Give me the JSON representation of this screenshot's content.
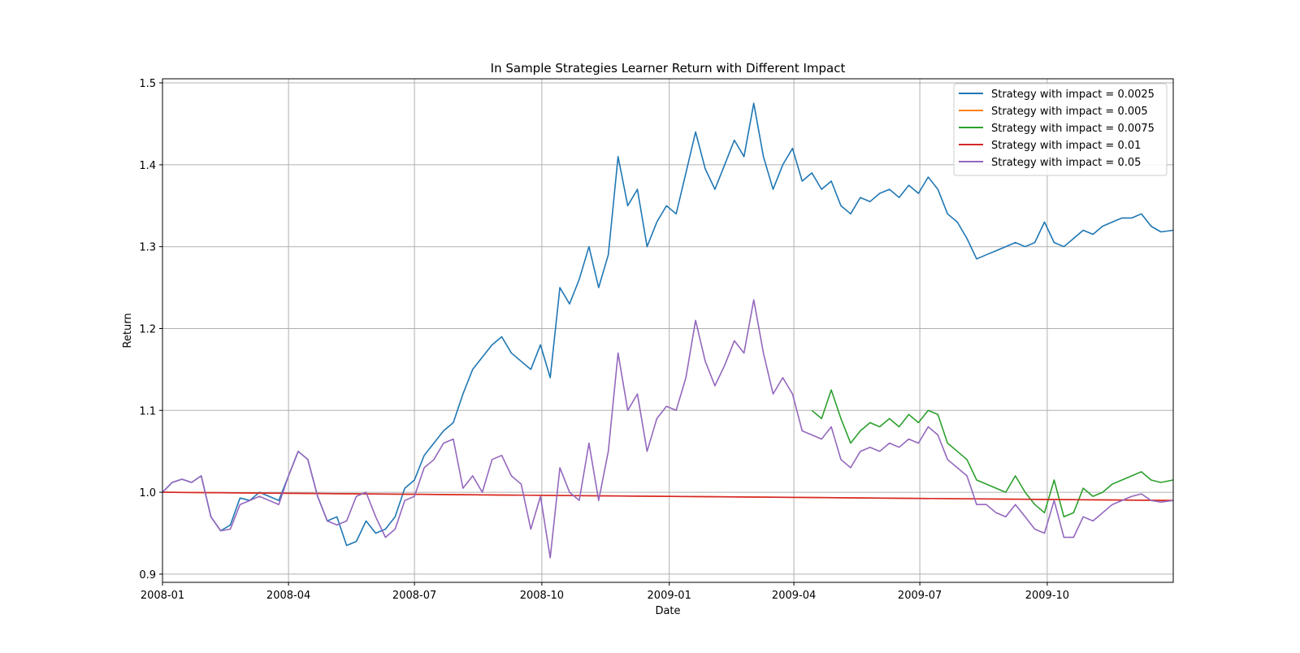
{
  "chart_data": {
    "type": "line",
    "title": "In Sample Strategies Learner Return with Different Impact",
    "xlabel": "Date",
    "ylabel": "Return",
    "xlim": [
      "2008-01-01",
      "2009-12-31"
    ],
    "ylim": [
      0.89,
      1.505
    ],
    "x_ticks": [
      "2008-01",
      "2008-04",
      "2008-07",
      "2008-10",
      "2009-01",
      "2009-04",
      "2009-07",
      "2009-10"
    ],
    "x_tick_dates": [
      "2008-01-01",
      "2008-04-01",
      "2008-07-01",
      "2008-10-01",
      "2009-01-01",
      "2009-04-01",
      "2009-07-01",
      "2009-10-01"
    ],
    "y_ticks": [
      "0.9",
      "1.0",
      "1.1",
      "1.2",
      "1.3",
      "1.4",
      "1.5"
    ],
    "y_tick_values": [
      0.9,
      1.0,
      1.1,
      1.2,
      1.3,
      1.4,
      1.5
    ],
    "grid": true,
    "legend_position": "top-right",
    "series": [
      {
        "name": "Strategy with impact = 0.0025",
        "color": "#1f77b4",
        "points": [
          [
            "2008-01-01",
            1.0
          ],
          [
            "2008-01-08",
            1.012
          ],
          [
            "2008-01-15",
            1.016
          ],
          [
            "2008-01-22",
            1.012
          ],
          [
            "2008-01-29",
            1.02
          ],
          [
            "2008-02-05",
            0.97
          ],
          [
            "2008-02-12",
            0.953
          ],
          [
            "2008-02-19",
            0.96
          ],
          [
            "2008-02-26",
            0.993
          ],
          [
            "2008-03-04",
            0.99
          ],
          [
            "2008-03-11",
            1.0
          ],
          [
            "2008-03-18",
            0.995
          ],
          [
            "2008-03-25",
            0.99
          ],
          [
            "2008-04-01",
            1.02
          ],
          [
            "2008-04-08",
            1.05
          ],
          [
            "2008-04-15",
            1.04
          ],
          [
            "2008-04-22",
            0.995
          ],
          [
            "2008-04-29",
            0.965
          ],
          [
            "2008-05-06",
            0.97
          ],
          [
            "2008-05-13",
            0.935
          ],
          [
            "2008-05-20",
            0.94
          ],
          [
            "2008-05-27",
            0.965
          ],
          [
            "2008-06-03",
            0.95
          ],
          [
            "2008-06-10",
            0.955
          ],
          [
            "2008-06-17",
            0.97
          ],
          [
            "2008-06-24",
            1.005
          ],
          [
            "2008-07-01",
            1.015
          ],
          [
            "2008-07-08",
            1.045
          ],
          [
            "2008-07-15",
            1.06
          ],
          [
            "2008-07-22",
            1.075
          ],
          [
            "2008-07-29",
            1.085
          ],
          [
            "2008-08-05",
            1.12
          ],
          [
            "2008-08-12",
            1.15
          ],
          [
            "2008-08-19",
            1.165
          ],
          [
            "2008-08-26",
            1.18
          ],
          [
            "2008-09-02",
            1.19
          ],
          [
            "2008-09-09",
            1.17
          ],
          [
            "2008-09-16",
            1.16
          ],
          [
            "2008-09-23",
            1.15
          ],
          [
            "2008-09-30",
            1.18
          ],
          [
            "2008-10-07",
            1.14
          ],
          [
            "2008-10-14",
            1.25
          ],
          [
            "2008-10-21",
            1.23
          ],
          [
            "2008-10-28",
            1.26
          ],
          [
            "2008-11-04",
            1.3
          ],
          [
            "2008-11-11",
            1.25
          ],
          [
            "2008-11-18",
            1.29
          ],
          [
            "2008-11-25",
            1.41
          ],
          [
            "2008-12-02",
            1.35
          ],
          [
            "2008-12-09",
            1.37
          ],
          [
            "2008-12-16",
            1.3
          ],
          [
            "2008-12-23",
            1.33
          ],
          [
            "2008-12-30",
            1.35
          ],
          [
            "2009-01-06",
            1.34
          ],
          [
            "2009-01-13",
            1.39
          ],
          [
            "2009-01-20",
            1.44
          ],
          [
            "2009-01-27",
            1.395
          ],
          [
            "2009-02-03",
            1.37
          ],
          [
            "2009-02-10",
            1.4
          ],
          [
            "2009-02-17",
            1.43
          ],
          [
            "2009-02-24",
            1.41
          ],
          [
            "2009-03-03",
            1.475
          ],
          [
            "2009-03-10",
            1.41
          ],
          [
            "2009-03-17",
            1.37
          ],
          [
            "2009-03-24",
            1.4
          ],
          [
            "2009-03-31",
            1.42
          ],
          [
            "2009-04-07",
            1.38
          ],
          [
            "2009-04-14",
            1.39
          ],
          [
            "2009-04-21",
            1.37
          ],
          [
            "2009-04-28",
            1.38
          ],
          [
            "2009-05-05",
            1.35
          ],
          [
            "2009-05-12",
            1.34
          ],
          [
            "2009-05-19",
            1.36
          ],
          [
            "2009-05-26",
            1.355
          ],
          [
            "2009-06-02",
            1.365
          ],
          [
            "2009-06-09",
            1.37
          ],
          [
            "2009-06-16",
            1.36
          ],
          [
            "2009-06-23",
            1.375
          ],
          [
            "2009-06-30",
            1.365
          ],
          [
            "2009-07-07",
            1.385
          ],
          [
            "2009-07-14",
            1.37
          ],
          [
            "2009-07-21",
            1.34
          ],
          [
            "2009-07-28",
            1.33
          ],
          [
            "2009-08-04",
            1.31
          ],
          [
            "2009-08-11",
            1.285
          ],
          [
            "2009-08-18",
            1.29
          ],
          [
            "2009-08-25",
            1.295
          ],
          [
            "2009-09-01",
            1.3
          ],
          [
            "2009-09-08",
            1.305
          ],
          [
            "2009-09-15",
            1.3
          ],
          [
            "2009-09-22",
            1.305
          ],
          [
            "2009-09-29",
            1.33
          ],
          [
            "2009-10-06",
            1.305
          ],
          [
            "2009-10-13",
            1.3
          ],
          [
            "2009-10-20",
            1.31
          ],
          [
            "2009-10-27",
            1.32
          ],
          [
            "2009-11-03",
            1.315
          ],
          [
            "2009-11-10",
            1.325
          ],
          [
            "2009-11-17",
            1.33
          ],
          [
            "2009-11-24",
            1.335
          ],
          [
            "2009-12-01",
            1.335
          ],
          [
            "2009-12-08",
            1.34
          ],
          [
            "2009-12-15",
            1.325
          ],
          [
            "2009-12-22",
            1.318
          ],
          [
            "2009-12-31",
            1.32
          ]
        ]
      },
      {
        "name": "Strategy with impact = 0.005",
        "color": "#ff7f0e",
        "points": [
          [
            "2008-01-01",
            1.0
          ],
          [
            "2009-12-31",
            0.99
          ]
        ]
      },
      {
        "name": "Strategy with impact = 0.0075",
        "color": "#2ca02c",
        "points": [
          [
            "2009-04-14",
            1.1
          ],
          [
            "2009-04-21",
            1.09
          ],
          [
            "2009-04-28",
            1.125
          ],
          [
            "2009-05-05",
            1.09
          ],
          [
            "2009-05-12",
            1.06
          ],
          [
            "2009-05-19",
            1.075
          ],
          [
            "2009-05-26",
            1.085
          ],
          [
            "2009-06-02",
            1.08
          ],
          [
            "2009-06-09",
            1.09
          ],
          [
            "2009-06-16",
            1.08
          ],
          [
            "2009-06-23",
            1.095
          ],
          [
            "2009-06-30",
            1.085
          ],
          [
            "2009-07-07",
            1.1
          ],
          [
            "2009-07-14",
            1.095
          ],
          [
            "2009-07-21",
            1.06
          ],
          [
            "2009-07-28",
            1.05
          ],
          [
            "2009-08-04",
            1.04
          ],
          [
            "2009-08-11",
            1.015
          ],
          [
            "2009-08-18",
            1.01
          ],
          [
            "2009-08-25",
            1.005
          ],
          [
            "2009-09-01",
            1.0
          ],
          [
            "2009-09-08",
            1.02
          ],
          [
            "2009-09-15",
            1.0
          ],
          [
            "2009-09-22",
            0.985
          ],
          [
            "2009-09-29",
            0.975
          ],
          [
            "2009-10-06",
            1.015
          ],
          [
            "2009-10-13",
            0.97
          ],
          [
            "2009-10-20",
            0.975
          ],
          [
            "2009-10-27",
            1.005
          ],
          [
            "2009-11-03",
            0.995
          ],
          [
            "2009-11-10",
            1.0
          ],
          [
            "2009-11-17",
            1.01
          ],
          [
            "2009-11-24",
            1.015
          ],
          [
            "2009-12-01",
            1.02
          ],
          [
            "2009-12-08",
            1.025
          ],
          [
            "2009-12-15",
            1.015
          ],
          [
            "2009-12-22",
            1.012
          ],
          [
            "2009-12-31",
            1.015
          ]
        ]
      },
      {
        "name": "Strategy with impact = 0.01",
        "color": "#d62728",
        "points": [
          [
            "2008-01-01",
            1.0
          ],
          [
            "2009-12-31",
            0.99
          ]
        ]
      },
      {
        "name": "Strategy with impact = 0.05",
        "color": "#9467bd",
        "points": [
          [
            "2008-01-01",
            1.0
          ],
          [
            "2008-01-08",
            1.012
          ],
          [
            "2008-01-15",
            1.016
          ],
          [
            "2008-01-22",
            1.012
          ],
          [
            "2008-01-29",
            1.02
          ],
          [
            "2008-02-05",
            0.97
          ],
          [
            "2008-02-12",
            0.953
          ],
          [
            "2008-02-19",
            0.955
          ],
          [
            "2008-02-26",
            0.985
          ],
          [
            "2008-03-04",
            0.99
          ],
          [
            "2008-03-11",
            0.995
          ],
          [
            "2008-03-18",
            0.99
          ],
          [
            "2008-03-25",
            0.985
          ],
          [
            "2008-04-01",
            1.02
          ],
          [
            "2008-04-08",
            1.05
          ],
          [
            "2008-04-15",
            1.04
          ],
          [
            "2008-04-22",
            0.995
          ],
          [
            "2008-04-29",
            0.965
          ],
          [
            "2008-05-06",
            0.96
          ],
          [
            "2008-05-13",
            0.965
          ],
          [
            "2008-05-20",
            0.995
          ],
          [
            "2008-05-27",
            1.0
          ],
          [
            "2008-06-03",
            0.97
          ],
          [
            "2008-06-10",
            0.945
          ],
          [
            "2008-06-17",
            0.955
          ],
          [
            "2008-06-24",
            0.99
          ],
          [
            "2008-07-01",
            0.995
          ],
          [
            "2008-07-08",
            1.03
          ],
          [
            "2008-07-15",
            1.04
          ],
          [
            "2008-07-22",
            1.06
          ],
          [
            "2008-07-29",
            1.065
          ],
          [
            "2008-08-05",
            1.005
          ],
          [
            "2008-08-12",
            1.02
          ],
          [
            "2008-08-19",
            1.0
          ],
          [
            "2008-08-26",
            1.04
          ],
          [
            "2008-09-02",
            1.045
          ],
          [
            "2008-09-09",
            1.02
          ],
          [
            "2008-09-16",
            1.01
          ],
          [
            "2008-09-23",
            0.955
          ],
          [
            "2008-09-30",
            0.995
          ],
          [
            "2008-10-07",
            0.92
          ],
          [
            "2008-10-14",
            1.03
          ],
          [
            "2008-10-21",
            1.0
          ],
          [
            "2008-10-28",
            0.99
          ],
          [
            "2008-11-04",
            1.06
          ],
          [
            "2008-11-11",
            0.99
          ],
          [
            "2008-11-18",
            1.05
          ],
          [
            "2008-11-25",
            1.17
          ],
          [
            "2008-12-02",
            1.1
          ],
          [
            "2008-12-09",
            1.12
          ],
          [
            "2008-12-16",
            1.05
          ],
          [
            "2008-12-23",
            1.09
          ],
          [
            "2008-12-30",
            1.105
          ],
          [
            "2009-01-06",
            1.1
          ],
          [
            "2009-01-13",
            1.14
          ],
          [
            "2009-01-20",
            1.21
          ],
          [
            "2009-01-27",
            1.16
          ],
          [
            "2009-02-03",
            1.13
          ],
          [
            "2009-02-10",
            1.155
          ],
          [
            "2009-02-17",
            1.185
          ],
          [
            "2009-02-24",
            1.17
          ],
          [
            "2009-03-03",
            1.235
          ],
          [
            "2009-03-10",
            1.17
          ],
          [
            "2009-03-17",
            1.12
          ],
          [
            "2009-03-24",
            1.14
          ],
          [
            "2009-03-31",
            1.12
          ],
          [
            "2009-04-07",
            1.075
          ],
          [
            "2009-04-14",
            1.07
          ],
          [
            "2009-04-21",
            1.065
          ],
          [
            "2009-04-28",
            1.08
          ],
          [
            "2009-05-05",
            1.04
          ],
          [
            "2009-05-12",
            1.03
          ],
          [
            "2009-05-19",
            1.05
          ],
          [
            "2009-05-26",
            1.055
          ],
          [
            "2009-06-02",
            1.05
          ],
          [
            "2009-06-09",
            1.06
          ],
          [
            "2009-06-16",
            1.055
          ],
          [
            "2009-06-23",
            1.065
          ],
          [
            "2009-06-30",
            1.06
          ],
          [
            "2009-07-07",
            1.08
          ],
          [
            "2009-07-14",
            1.07
          ],
          [
            "2009-07-21",
            1.04
          ],
          [
            "2009-07-28",
            1.03
          ],
          [
            "2009-08-04",
            1.02
          ],
          [
            "2009-08-11",
            0.985
          ],
          [
            "2009-08-18",
            0.985
          ],
          [
            "2009-08-25",
            0.975
          ],
          [
            "2009-09-01",
            0.97
          ],
          [
            "2009-09-08",
            0.985
          ],
          [
            "2009-09-15",
            0.97
          ],
          [
            "2009-09-22",
            0.955
          ],
          [
            "2009-09-29",
            0.95
          ],
          [
            "2009-10-06",
            0.99
          ],
          [
            "2009-10-13",
            0.945
          ],
          [
            "2009-10-20",
            0.945
          ],
          [
            "2009-10-27",
            0.97
          ],
          [
            "2009-11-03",
            0.965
          ],
          [
            "2009-11-10",
            0.975
          ],
          [
            "2009-11-17",
            0.985
          ],
          [
            "2009-11-24",
            0.99
          ],
          [
            "2009-12-01",
            0.995
          ],
          [
            "2009-12-08",
            0.998
          ],
          [
            "2009-12-15",
            0.99
          ],
          [
            "2009-12-22",
            0.988
          ],
          [
            "2009-12-31",
            0.99
          ]
        ]
      }
    ]
  }
}
